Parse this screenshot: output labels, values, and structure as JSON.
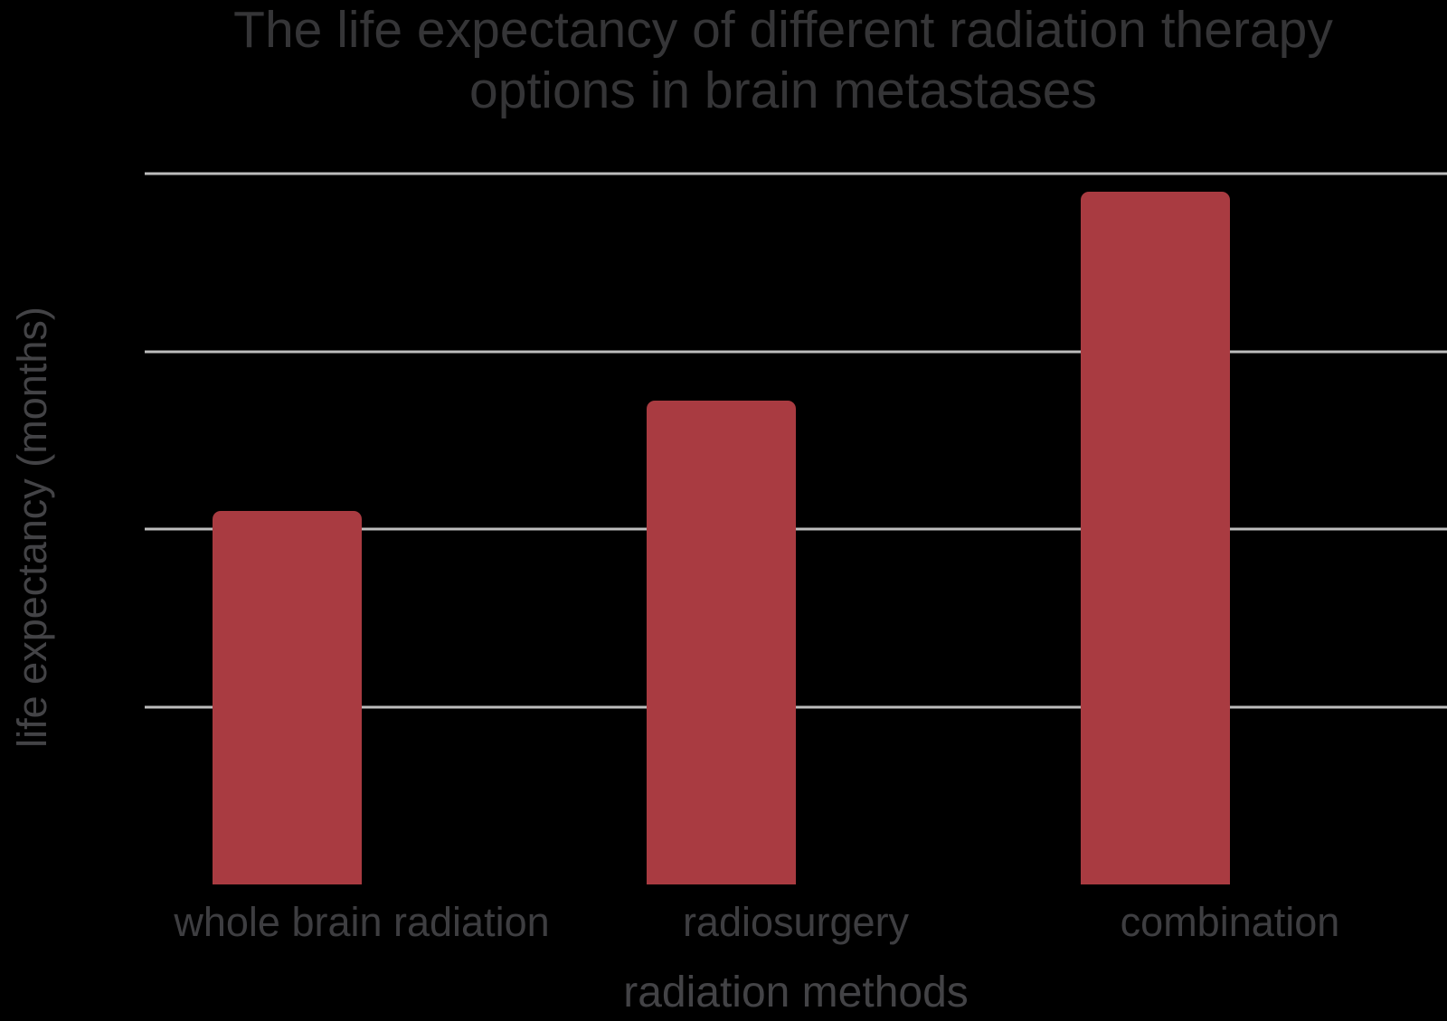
{
  "chart_data": {
    "type": "bar",
    "title": "The life expectancy of different radiation therapy options in brain metastases",
    "title_lines": [
      "The life expectancy of different radiation therapy",
      "options in brain metastases"
    ],
    "xlabel": "radiation methods",
    "ylabel": "life expectancy (months)",
    "categories": [
      "whole brain radiation",
      "radiosurgery",
      "combination"
    ],
    "values": [
      4.2,
      5.45,
      7.8
    ],
    "ylim": [
      0,
      8
    ],
    "gridline_values": [
      2,
      4,
      6,
      8
    ],
    "y_tick_labels_visible": false,
    "grid": "horizontal-only",
    "legend_position": "none",
    "colors": {
      "background": "#000000",
      "bar": "#a93b41",
      "gridline": "#bdbdbd",
      "title_text": "#353537",
      "axis_title_text": "#434346",
      "tick_label_text": "#3e3e41"
    }
  }
}
